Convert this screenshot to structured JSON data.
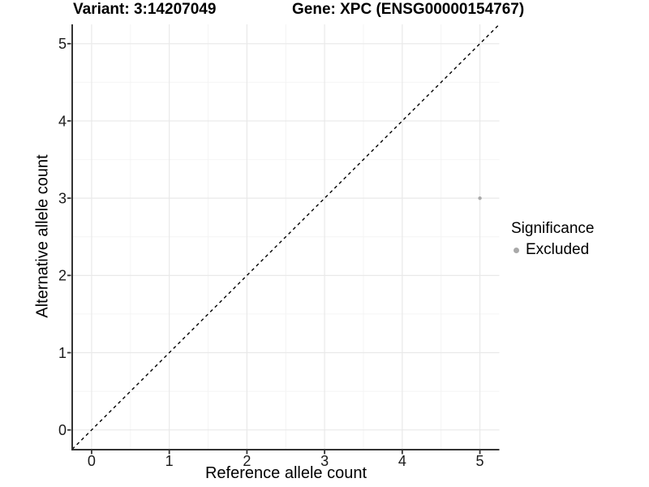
{
  "chart_data": {
    "type": "scatter",
    "titles": {
      "left": "Variant: 3:14207049",
      "right": "Gene: XPC (ENSG00000154767)"
    },
    "xlabel": "Reference allele count",
    "ylabel": "Alternative allele count",
    "xlim": [
      -0.25,
      5.25
    ],
    "ylim": [
      -0.25,
      5.25
    ],
    "x_ticks": [
      0,
      1,
      2,
      3,
      4,
      5
    ],
    "y_ticks": [
      0,
      1,
      2,
      3,
      4,
      5
    ],
    "grid": {
      "major": true,
      "minor": true
    },
    "points": [
      {
        "x": 5,
        "y": 3,
        "series": "Excluded",
        "color": "#a9a9a9"
      }
    ],
    "reference_line": {
      "slope": 1,
      "intercept": 0,
      "style": "dashed",
      "color": "#000000"
    },
    "legend": {
      "title": "Significance",
      "position": "right",
      "items": [
        {
          "label": "Excluded",
          "color": "#a9a9a9"
        }
      ]
    },
    "colors": {
      "background": "#ffffff",
      "grid_major": "#e9e9e9",
      "grid_minor": "#f4f4f4",
      "axis_line": "#333333",
      "text": "#000000"
    }
  }
}
